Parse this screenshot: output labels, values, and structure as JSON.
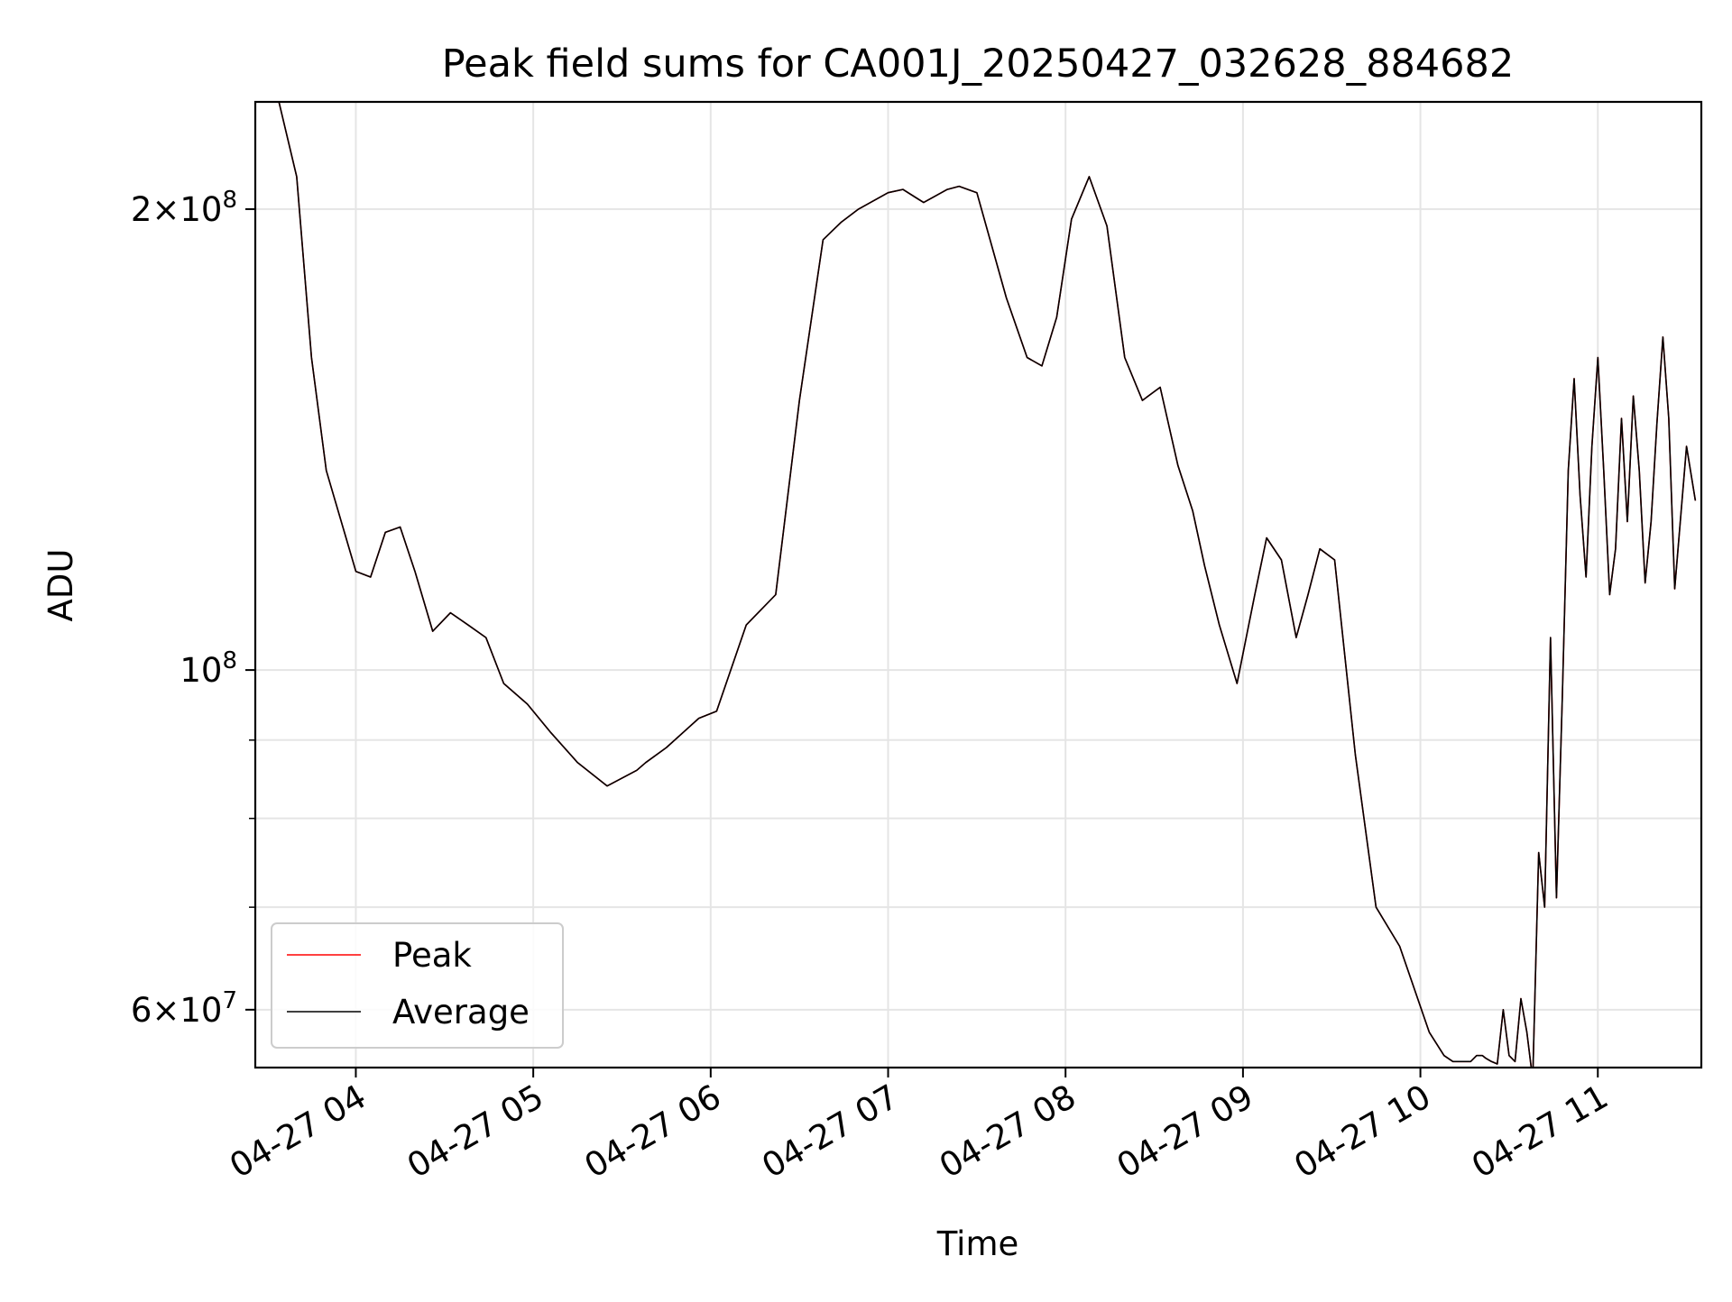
{
  "chart_data": {
    "type": "line",
    "title": "Peak field sums for CA001J_20250427_032628_884682",
    "xlabel": "Time",
    "ylabel": "ADU",
    "y_scale": "log",
    "ylim": [
      55000000,
      235000000
    ],
    "xlim": [
      "2025-04-27 03:26",
      "2025-04-27 11:35"
    ],
    "x_tick_labels": [
      "04-27 04",
      "04-27 05",
      "04-27 06",
      "04-27 07",
      "04-27 08",
      "04-27 09",
      "04-27 10",
      "04-27 11"
    ],
    "x_tick_values": [
      "2025-04-27 04:00",
      "2025-04-27 05:00",
      "2025-04-27 06:00",
      "2025-04-27 07:00",
      "2025-04-27 08:00",
      "2025-04-27 09:00",
      "2025-04-27 10:00",
      "2025-04-27 11:00"
    ],
    "y_major_ticks": [
      {
        "value": 200000000,
        "label_mant": "2×10",
        "label_exp": "8"
      },
      {
        "value": 100000000,
        "label_mant": "10",
        "label_exp": "8"
      },
      {
        "value": 60000000,
        "label_mant": "6×10",
        "label_exp": "7"
      }
    ],
    "y_minor_ticks": [
      70000000,
      80000000,
      90000000
    ],
    "grid": true,
    "legend_position": "lower-left",
    "series": [
      {
        "name": "Peak",
        "color": "#ff0000",
        "x": [
          "2025-04-27 03:34",
          "2025-04-27 03:40",
          "2025-04-27 03:45",
          "2025-04-27 03:50",
          "2025-04-27 04:00",
          "2025-04-27 04:05",
          "2025-04-27 04:10",
          "2025-04-27 04:15",
          "2025-04-27 04:20",
          "2025-04-27 04:26",
          "2025-04-27 04:32",
          "2025-04-27 04:38",
          "2025-04-27 04:44",
          "2025-04-27 04:50",
          "2025-04-27 04:58",
          "2025-04-27 05:06",
          "2025-04-27 05:15",
          "2025-04-27 05:25",
          "2025-04-27 05:35",
          "2025-04-27 05:38",
          "2025-04-27 05:45",
          "2025-04-27 05:56",
          "2025-04-27 06:02",
          "2025-04-27 06:12",
          "2025-04-27 06:22",
          "2025-04-27 06:30",
          "2025-04-27 06:38",
          "2025-04-27 06:44",
          "2025-04-27 06:50",
          "2025-04-27 07:00",
          "2025-04-27 07:05",
          "2025-04-27 07:12",
          "2025-04-27 07:20",
          "2025-04-27 07:24",
          "2025-04-27 07:30",
          "2025-04-27 07:40",
          "2025-04-27 07:47",
          "2025-04-27 07:52",
          "2025-04-27 07:57",
          "2025-04-27 08:02",
          "2025-04-27 08:08",
          "2025-04-27 08:14",
          "2025-04-27 08:20",
          "2025-04-27 08:26",
          "2025-04-27 08:32",
          "2025-04-27 08:38",
          "2025-04-27 08:43",
          "2025-04-27 08:47",
          "2025-04-27 08:52",
          "2025-04-27 08:58",
          "2025-04-27 09:04",
          "2025-04-27 09:08",
          "2025-04-27 09:13",
          "2025-04-27 09:18",
          "2025-04-27 09:22",
          "2025-04-27 09:26",
          "2025-04-27 09:31",
          "2025-04-27 09:38",
          "2025-04-27 09:45",
          "2025-04-27 09:53",
          "2025-04-27 10:03",
          "2025-04-27 10:08",
          "2025-04-27 10:11",
          "2025-04-27 10:13",
          "2025-04-27 10:15",
          "2025-04-27 10:17",
          "2025-04-27 10:19",
          "2025-04-27 10:21",
          "2025-04-27 10:22",
          "2025-04-27 10:24",
          "2025-04-27 10:26",
          "2025-04-27 10:28",
          "2025-04-27 10:30",
          "2025-04-27 10:32",
          "2025-04-27 10:34",
          "2025-04-27 10:36",
          "2025-04-27 10:38",
          "2025-04-27 10:40",
          "2025-04-27 10:42",
          "2025-04-27 10:44",
          "2025-04-27 10:46",
          "2025-04-27 10:48",
          "2025-04-27 10:50",
          "2025-04-27 10:52",
          "2025-04-27 10:54",
          "2025-04-27 10:56",
          "2025-04-27 10:58",
          "2025-04-27 11:00",
          "2025-04-27 11:02",
          "2025-04-27 11:04",
          "2025-04-27 11:06",
          "2025-04-27 11:08",
          "2025-04-27 11:10",
          "2025-04-27 11:12",
          "2025-04-27 11:14",
          "2025-04-27 11:16",
          "2025-04-27 11:18",
          "2025-04-27 11:20",
          "2025-04-27 11:22",
          "2025-04-27 11:24",
          "2025-04-27 11:26",
          "2025-04-27 11:30",
          "2025-04-27 11:33"
        ],
        "values": [
          235000000,
          210000000,
          160000000,
          135000000,
          116000000,
          115000000,
          123000000,
          124000000,
          116000000,
          106000000,
          109000000,
          107000000,
          105000000,
          98000000,
          95000000,
          91000000,
          87000000,
          84000000,
          86000000,
          87000000,
          89000000,
          93000000,
          94000000,
          107000000,
          112000000,
          150000000,
          191000000,
          196000000,
          200000000,
          205000000,
          206000000,
          202000000,
          206000000,
          207000000,
          205000000,
          175000000,
          160000000,
          158000000,
          170000000,
          197000000,
          210000000,
          195000000,
          160000000,
          150000000,
          153000000,
          136000000,
          127000000,
          117000000,
          107000000,
          98000000,
          112000000,
          122000000,
          118000000,
          105000000,
          112000000,
          120000000,
          118000000,
          88000000,
          70000000,
          66000000,
          58000000,
          56000000,
          55500000,
          55500000,
          55500000,
          55500000,
          56000000,
          56000000,
          55800000,
          55500000,
          55300000,
          60000000,
          56000000,
          55500000,
          61000000,
          58000000,
          54000000,
          76000000,
          70000000,
          105000000,
          71000000,
          96000000,
          135000000,
          155000000,
          130000000,
          115000000,
          140000000,
          160000000,
          135000000,
          112000000,
          120000000,
          146000000,
          125000000,
          151000000,
          135000000,
          114000000,
          125000000,
          145000000,
          165000000,
          146000000,
          113000000,
          140000000,
          129000000
        ]
      },
      {
        "name": "Average",
        "color": "#000000",
        "x": [
          "2025-04-27 03:34",
          "2025-04-27 03:40",
          "2025-04-27 03:45",
          "2025-04-27 03:50",
          "2025-04-27 04:00",
          "2025-04-27 04:05",
          "2025-04-27 04:10",
          "2025-04-27 04:15",
          "2025-04-27 04:20",
          "2025-04-27 04:26",
          "2025-04-27 04:32",
          "2025-04-27 04:38",
          "2025-04-27 04:44",
          "2025-04-27 04:50",
          "2025-04-27 04:58",
          "2025-04-27 05:06",
          "2025-04-27 05:15",
          "2025-04-27 05:25",
          "2025-04-27 05:35",
          "2025-04-27 05:38",
          "2025-04-27 05:45",
          "2025-04-27 05:56",
          "2025-04-27 06:02",
          "2025-04-27 06:12",
          "2025-04-27 06:22",
          "2025-04-27 06:30",
          "2025-04-27 06:38",
          "2025-04-27 06:44",
          "2025-04-27 06:50",
          "2025-04-27 07:00",
          "2025-04-27 07:05",
          "2025-04-27 07:12",
          "2025-04-27 07:20",
          "2025-04-27 07:24",
          "2025-04-27 07:30",
          "2025-04-27 07:40",
          "2025-04-27 07:47",
          "2025-04-27 07:52",
          "2025-04-27 07:57",
          "2025-04-27 08:02",
          "2025-04-27 08:08",
          "2025-04-27 08:14",
          "2025-04-27 08:20",
          "2025-04-27 08:26",
          "2025-04-27 08:32",
          "2025-04-27 08:38",
          "2025-04-27 08:43",
          "2025-04-27 08:47",
          "2025-04-27 08:52",
          "2025-04-27 08:58",
          "2025-04-27 09:04",
          "2025-04-27 09:08",
          "2025-04-27 09:13",
          "2025-04-27 09:18",
          "2025-04-27 09:22",
          "2025-04-27 09:26",
          "2025-04-27 09:31",
          "2025-04-27 09:38",
          "2025-04-27 09:45",
          "2025-04-27 09:53",
          "2025-04-27 10:03",
          "2025-04-27 10:08",
          "2025-04-27 10:11",
          "2025-04-27 10:13",
          "2025-04-27 10:15",
          "2025-04-27 10:17",
          "2025-04-27 10:19",
          "2025-04-27 10:21",
          "2025-04-27 10:22",
          "2025-04-27 10:24",
          "2025-04-27 10:26",
          "2025-04-27 10:28",
          "2025-04-27 10:30",
          "2025-04-27 10:32",
          "2025-04-27 10:34",
          "2025-04-27 10:36",
          "2025-04-27 10:38",
          "2025-04-27 10:40",
          "2025-04-27 10:42",
          "2025-04-27 10:44",
          "2025-04-27 10:46",
          "2025-04-27 10:48",
          "2025-04-27 10:50",
          "2025-04-27 10:52",
          "2025-04-27 10:54",
          "2025-04-27 10:56",
          "2025-04-27 10:58",
          "2025-04-27 11:00",
          "2025-04-27 11:02",
          "2025-04-27 11:04",
          "2025-04-27 11:06",
          "2025-04-27 11:08",
          "2025-04-27 11:10",
          "2025-04-27 11:12",
          "2025-04-27 11:14",
          "2025-04-27 11:16",
          "2025-04-27 11:18",
          "2025-04-27 11:20",
          "2025-04-27 11:22",
          "2025-04-27 11:24",
          "2025-04-27 11:26",
          "2025-04-27 11:30",
          "2025-04-27 11:33"
        ],
        "values": [
          235000000,
          210000000,
          160000000,
          135000000,
          116000000,
          115000000,
          123000000,
          124000000,
          116000000,
          106000000,
          109000000,
          107000000,
          105000000,
          98000000,
          95000000,
          91000000,
          87000000,
          84000000,
          86000000,
          87000000,
          89000000,
          93000000,
          94000000,
          107000000,
          112000000,
          150000000,
          191000000,
          196000000,
          200000000,
          205000000,
          206000000,
          202000000,
          206000000,
          207000000,
          205000000,
          175000000,
          160000000,
          158000000,
          170000000,
          197000000,
          210000000,
          195000000,
          160000000,
          150000000,
          153000000,
          136000000,
          127000000,
          117000000,
          107000000,
          98000000,
          112000000,
          122000000,
          118000000,
          105000000,
          112000000,
          120000000,
          118000000,
          88000000,
          70000000,
          66000000,
          58000000,
          56000000,
          55500000,
          55500000,
          55500000,
          55500000,
          56000000,
          56000000,
          55800000,
          55500000,
          55300000,
          60000000,
          56000000,
          55500000,
          61000000,
          58000000,
          54000000,
          76000000,
          70000000,
          105000000,
          71000000,
          96000000,
          135000000,
          155000000,
          130000000,
          115000000,
          140000000,
          160000000,
          135000000,
          112000000,
          120000000,
          146000000,
          125000000,
          151000000,
          135000000,
          114000000,
          125000000,
          145000000,
          165000000,
          146000000,
          113000000,
          140000000,
          129000000
        ]
      }
    ]
  }
}
